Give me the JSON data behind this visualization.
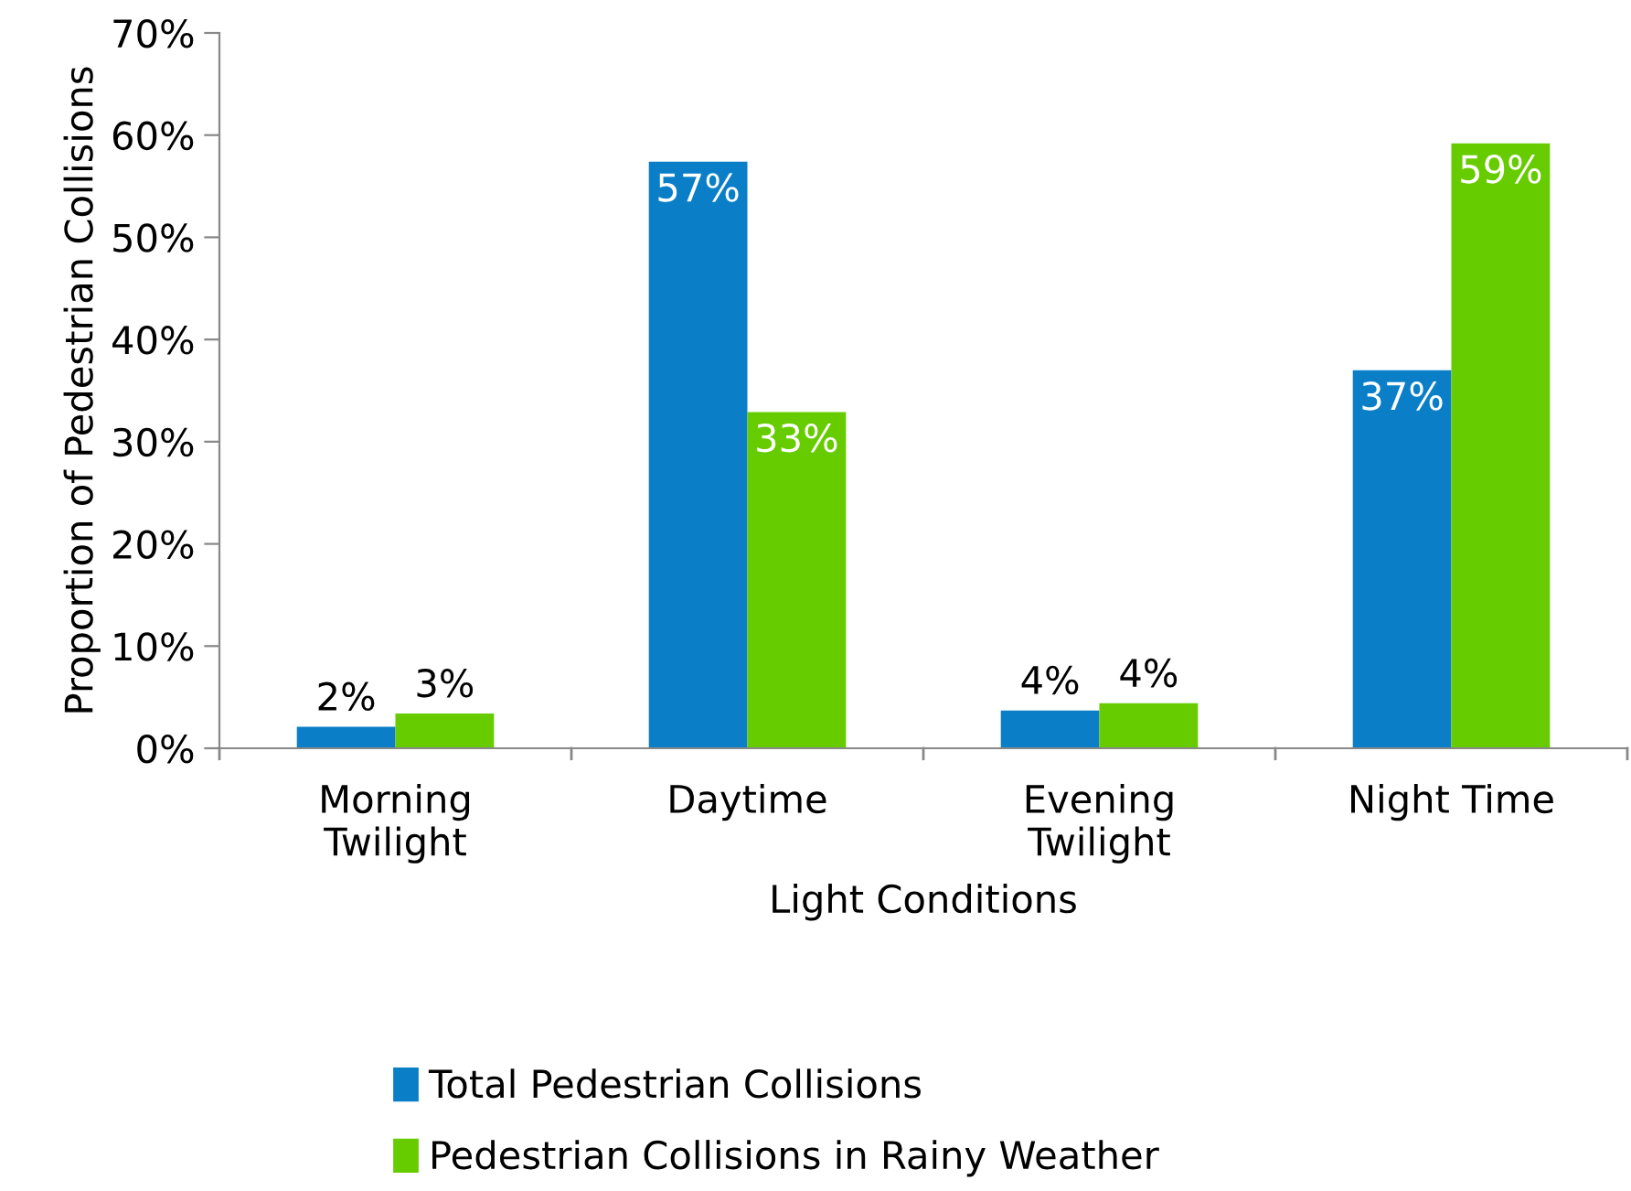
{
  "chart_data": {
    "type": "bar",
    "xlabel": "Light Conditions",
    "ylabel": "Proportion of Pedestrian Collisions",
    "categories": [
      "Morning\nTwilight",
      "Daytime",
      "Evening\nTwilight",
      "Night Time"
    ],
    "series": [
      {
        "name": "Total Pedestrian Collisions",
        "color": "#0a7fc7",
        "values": [
          2.1,
          57.4,
          3.7,
          37.0
        ],
        "value_labels": [
          "2%",
          "57%",
          "4%",
          "37%"
        ]
      },
      {
        "name": "Pedestrian Collisions in Rainy Weather",
        "color": "#66cc00",
        "values": [
          3.4,
          32.9,
          4.4,
          59.2
        ],
        "value_labels": [
          "3%",
          "33%",
          "4%",
          "59%"
        ]
      }
    ],
    "ylim": [
      0,
      70
    ],
    "yticks": [
      {
        "value": 0,
        "label": "0%"
      },
      {
        "value": 10,
        "label": "10%"
      },
      {
        "value": 20,
        "label": "20%"
      },
      {
        "value": 30,
        "label": "30%"
      },
      {
        "value": 40,
        "label": "40%"
      },
      {
        "value": 50,
        "label": "50%"
      },
      {
        "value": 60,
        "label": "60%"
      },
      {
        "value": 70,
        "label": "70%"
      }
    ],
    "grid": false,
    "legend": "bottom"
  }
}
